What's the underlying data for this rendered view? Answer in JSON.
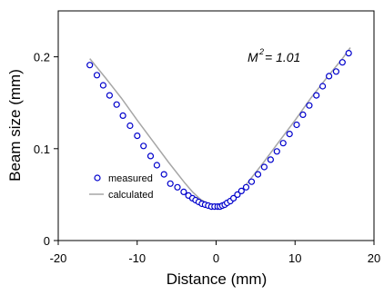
{
  "chart_data": {
    "type": "scatter",
    "xlabel": "Distance (mm)",
    "ylabel": "Beam size (mm)",
    "xlim": [
      -20,
      20
    ],
    "ylim": [
      0,
      0.25
    ],
    "x_ticks": [
      -20,
      -10,
      0,
      10,
      20
    ],
    "y_ticks": [
      0,
      0.1,
      0.2
    ],
    "x_tick_labels": [
      "-20",
      "-10",
      "0",
      "10",
      "20"
    ],
    "y_tick_labels": [
      "0",
      "0.1",
      "0.2"
    ],
    "grid": false,
    "legend_position": "left-middle",
    "annotation": {
      "prefix": "M",
      "superscript": "2",
      "suffix": " = 1.01"
    },
    "colors": {
      "measured": "#0000cc",
      "calculated": "#a6a6a6",
      "axis": "#000000"
    },
    "series": [
      {
        "name": "measured",
        "kind": "scatter",
        "marker": "open-circle",
        "x": [
          -16.0,
          -15.1,
          -14.3,
          -13.5,
          -12.6,
          -11.8,
          -10.9,
          -10.0,
          -9.2,
          -8.3,
          -7.5,
          -6.6,
          -5.8,
          -4.9,
          -4.1,
          -3.5,
          -3.0,
          -2.6,
          -2.2,
          -1.8,
          -1.4,
          -1.0,
          -0.6,
          -0.2,
          0.2,
          0.5,
          0.8,
          1.1,
          1.4,
          1.8,
          2.2,
          2.7,
          3.2,
          3.8,
          4.5,
          5.3,
          6.1,
          6.9,
          7.7,
          8.5,
          9.3,
          10.2,
          11.0,
          11.8,
          12.7,
          13.5,
          14.3,
          15.2,
          16.0,
          16.8
        ],
        "y": [
          0.191,
          0.18,
          0.169,
          0.158,
          0.148,
          0.136,
          0.125,
          0.114,
          0.103,
          0.092,
          0.082,
          0.072,
          0.062,
          0.058,
          0.053,
          0.049,
          0.046,
          0.044,
          0.042,
          0.04,
          0.039,
          0.038,
          0.037,
          0.037,
          0.037,
          0.037,
          0.038,
          0.039,
          0.041,
          0.043,
          0.046,
          0.05,
          0.054,
          0.058,
          0.064,
          0.072,
          0.08,
          0.088,
          0.097,
          0.106,
          0.116,
          0.126,
          0.137,
          0.147,
          0.158,
          0.168,
          0.179,
          0.184,
          0.194,
          0.204
        ]
      },
      {
        "name": "calculated",
        "kind": "line",
        "x": [
          -16,
          -14,
          -12,
          -10,
          -8,
          -6,
          -4,
          -3,
          -2,
          -1,
          -0.5,
          0,
          0.5,
          1,
          2,
          3,
          4,
          6,
          8,
          10,
          12,
          14,
          16,
          17
        ],
        "y": [
          0.198,
          0.177,
          0.155,
          0.131,
          0.108,
          0.085,
          0.063,
          0.053,
          0.045,
          0.04,
          0.038,
          0.037,
          0.038,
          0.04,
          0.045,
          0.053,
          0.063,
          0.085,
          0.108,
          0.131,
          0.155,
          0.177,
          0.198,
          0.21
        ]
      }
    ]
  }
}
